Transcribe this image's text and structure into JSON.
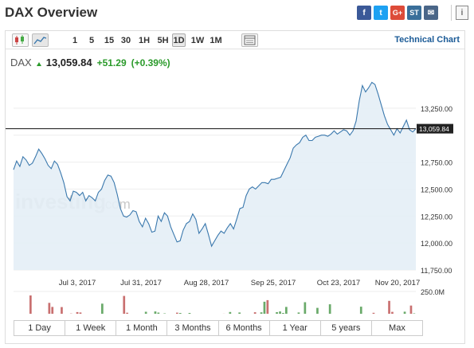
{
  "header": {
    "title": "DAX Overview",
    "social": [
      {
        "name": "facebook-icon",
        "label": "f"
      },
      {
        "name": "twitter-icon",
        "label": "t"
      },
      {
        "name": "googleplus-icon",
        "label": "G+"
      },
      {
        "name": "stocktwits-icon",
        "label": "ST"
      },
      {
        "name": "email-icon",
        "label": "✉"
      }
    ],
    "extra_label": "i"
  },
  "toolbar": {
    "timeframes": [
      "1",
      "5",
      "15",
      "30",
      "1H",
      "5H",
      "1D",
      "1W",
      "1M"
    ],
    "active": "1D",
    "technical_chart": "Technical Chart"
  },
  "quote": {
    "symbol": "DAX",
    "last": "13,059.84",
    "change": "+51.29",
    "change_pct": "(+0.39%)"
  },
  "chart_data": {
    "type": "area",
    "ylim": [
      11750,
      13500
    ],
    "yticks": [
      11750,
      12000,
      12250,
      12500,
      12750,
      13000,
      13250
    ],
    "ytick_labels": [
      "11,750.00",
      "12,000.00",
      "12,250.00",
      "12,500.00",
      "12,750.00",
      "",
      "13,250.00"
    ],
    "xtick_labels": [
      "Jul 3, 2017",
      "Jul 31, 2017",
      "Aug 28, 2017",
      "Sep 25, 2017",
      "Oct 23, 2017",
      "Nov 20, 2017"
    ],
    "current_price": 13059.84,
    "current_label": "13,059.84",
    "volume_label": "250.0M",
    "volume_zero": "0",
    "watermark": "investing",
    "watermark_suffix": ".com",
    "colors": {
      "line": "#3a78ad",
      "fill": "#e4eef6",
      "up": "#6aaa6a",
      "down": "#c97070"
    },
    "price": [
      12680,
      12760,
      12710,
      12800,
      12770,
      12720,
      12740,
      12800,
      12870,
      12830,
      12780,
      12720,
      12690,
      12760,
      12730,
      12650,
      12560,
      12430,
      12390,
      12480,
      12470,
      12440,
      12470,
      12390,
      12440,
      12420,
      12390,
      12470,
      12500,
      12580,
      12630,
      12620,
      12560,
      12450,
      12320,
      12250,
      12240,
      12260,
      12300,
      12290,
      12200,
      12150,
      12230,
      12180,
      12100,
      12110,
      12250,
      12200,
      12280,
      12250,
      12150,
      12080,
      12010,
      12020,
      12120,
      12180,
      12200,
      12270,
      12220,
      12090,
      12130,
      12180,
      12080,
      11970,
      12020,
      12070,
      12110,
      12090,
      12140,
      12180,
      12130,
      12220,
      12320,
      12330,
      12440,
      12500,
      12520,
      12500,
      12530,
      12560,
      12560,
      12550,
      12590,
      12590,
      12600,
      12610,
      12670,
      12730,
      12790,
      12880,
      12910,
      12930,
      12980,
      13000,
      12950,
      12950,
      12980,
      12990,
      13000,
      13000,
      12990,
      13010,
      13040,
      13010,
      13030,
      13050,
      13040,
      13000,
      13040,
      13130,
      13320,
      13460,
      13400,
      13440,
      13490,
      13470,
      13380,
      13280,
      13180,
      13100,
      13050,
      13000,
      13060,
      13020,
      13080,
      13140,
      13050,
      13030,
      13060
    ]
  },
  "ranges": [
    "1 Day",
    "1 Week",
    "1 Month",
    "3 Months",
    "6 Months",
    "1 Year",
    "5 years",
    "Max"
  ]
}
